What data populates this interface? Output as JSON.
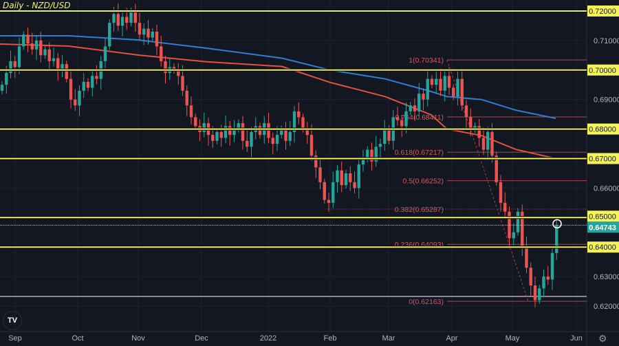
{
  "title": "Daily - NZD/USD",
  "chart_data": {
    "type": "candlestick",
    "title": "Daily - NZD/USD",
    "ylim": [
      0.615,
      0.7237
    ],
    "y_ticks": [
      "0.72000",
      "0.71000",
      "0.70000",
      "0.69000",
      "0.68000",
      "0.67000",
      "0.66000",
      "0.65000",
      "0.64000",
      "0.63000",
      "0.62000"
    ],
    "x_ticks": [
      "Sep",
      "Oct",
      "Nov",
      "Dec",
      "2022",
      "Feb",
      "Mar",
      "Apr",
      "May",
      "Jun"
    ],
    "closes": [
      0.695,
      0.699,
      0.703,
      0.701,
      0.708,
      0.712,
      0.709,
      0.707,
      0.71,
      0.705,
      0.707,
      0.703,
      0.704,
      0.7,
      0.702,
      0.697,
      0.69,
      0.688,
      0.693,
      0.696,
      0.694,
      0.698,
      0.697,
      0.703,
      0.708,
      0.716,
      0.719,
      0.715,
      0.718,
      0.716,
      0.72,
      0.716,
      0.712,
      0.714,
      0.711,
      0.713,
      0.708,
      0.703,
      0.699,
      0.701,
      0.7,
      0.698,
      0.693,
      0.688,
      0.684,
      0.681,
      0.679,
      0.682,
      0.678,
      0.676,
      0.679,
      0.677,
      0.681,
      0.678,
      0.68,
      0.682,
      0.676,
      0.674,
      0.679,
      0.681,
      0.678,
      0.682,
      0.677,
      0.675,
      0.678,
      0.68,
      0.676,
      0.679,
      0.686,
      0.684,
      0.68,
      0.678,
      0.671,
      0.667,
      0.662,
      0.656,
      0.655,
      0.662,
      0.666,
      0.661,
      0.665,
      0.662,
      0.66,
      0.668,
      0.67,
      0.673,
      0.669,
      0.674,
      0.675,
      0.68,
      0.676,
      0.684,
      0.683,
      0.681,
      0.686,
      0.688,
      0.686,
      0.692,
      0.69,
      0.697,
      0.695,
      0.697,
      0.693,
      0.698,
      0.694,
      0.691,
      0.697,
      0.688,
      0.684,
      0.68,
      0.681,
      0.677,
      0.673,
      0.679,
      0.671,
      0.662,
      0.655,
      0.652,
      0.643,
      0.645,
      0.652,
      0.64,
      0.633,
      0.627,
      0.622,
      0.626,
      0.63,
      0.629,
      0.638,
      0.64743
    ],
    "moving_averages": [
      {
        "color": "#2f7fd3",
        "values": [
          0.7116,
          0.7116,
          0.7102,
          0.7074,
          0.704,
          0.7,
          0.697,
          0.6927,
          0.691,
          0.69,
          0.6864,
          0.6836
        ]
      },
      {
        "color": "#e8503f",
        "values": [
          0.7088,
          0.7081,
          0.7051,
          0.7028,
          0.7012,
          0.6958,
          0.691,
          0.6848,
          0.68,
          0.6778,
          0.6731,
          0.67
        ]
      }
    ],
    "horizontal_levels": [
      0.72,
      0.7,
      0.68,
      0.67,
      0.65,
      0.64
    ],
    "level_labels": [
      "0.72000",
      "0.70000",
      "0.68000",
      "0.67000",
      "0.65000",
      "0.64000"
    ],
    "fib_levels": [
      {
        "label": "1(0.70341)",
        "price": 0.70341
      },
      {
        "label": "0.764(0.68411)",
        "price": 0.68411
      },
      {
        "label": "0.618(0.67217)",
        "price": 0.67217
      },
      {
        "label": "0.5(0.66252)",
        "price": 0.66252
      },
      {
        "label": "0.382(0.65287)",
        "price": 0.65287
      },
      {
        "label": "0.236(0.64093)",
        "price": 0.64093
      },
      {
        "label": "0(0.62163)",
        "price": 0.62163
      }
    ],
    "support_line": 0.6233,
    "last_price": "0.64743",
    "colors": {
      "up": "#26a69a",
      "down": "#ef5350",
      "level": "#f5f35a",
      "fib": "#b2434b",
      "bg": "#131722"
    }
  }
}
